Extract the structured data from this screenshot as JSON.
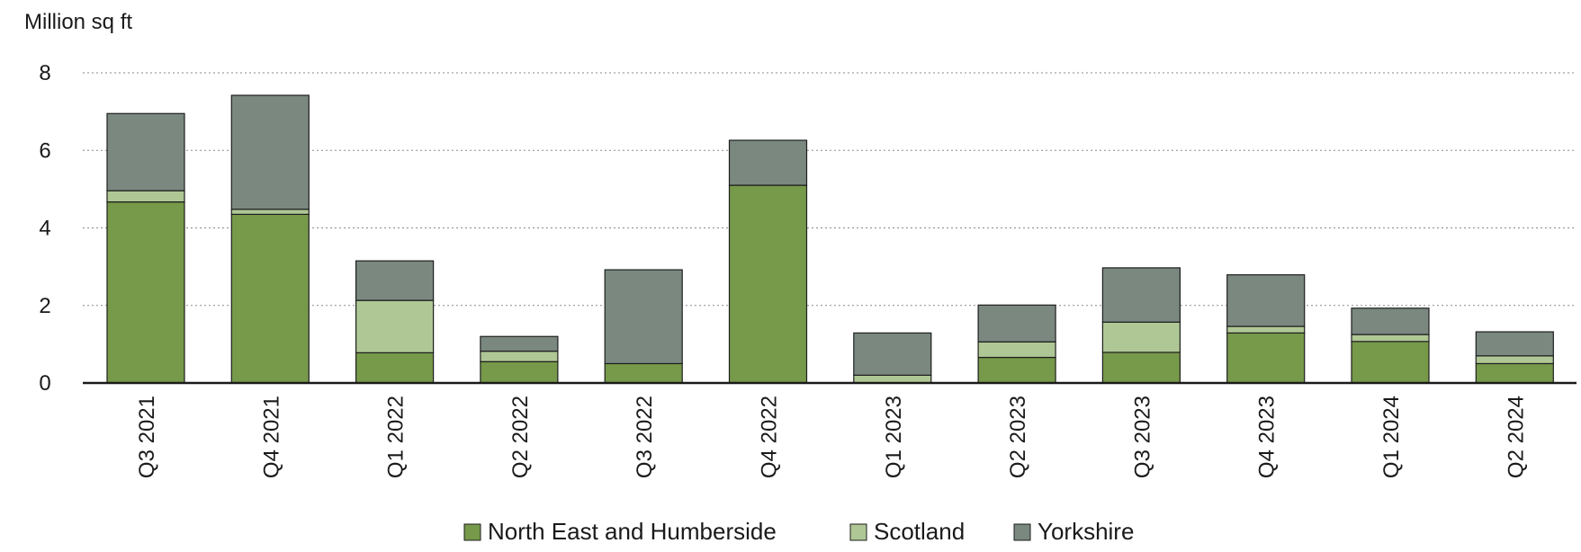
{
  "chart_data": {
    "type": "bar",
    "stacked": true,
    "title": "",
    "xlabel": "",
    "ylabel": "Million sq ft",
    "ylim": [
      0,
      8
    ],
    "yticks": [
      0,
      2,
      4,
      6,
      8
    ],
    "grid": "horizontal dotted",
    "legend_position": "bottom",
    "categories": [
      "Q3 2021",
      "Q4 2021",
      "Q1 2022",
      "Q2 2022",
      "Q3 2022",
      "Q4 2022",
      "Q1 2023",
      "Q2 2023",
      "Q3 2023",
      "Q4 2023",
      "Q1 2024",
      "Q2 2024"
    ],
    "series": [
      {
        "name": "North East and Humberside",
        "color": "#76994a",
        "values": [
          4.67,
          4.35,
          0.78,
          0.55,
          0.5,
          5.1,
          0.0,
          0.66,
          0.79,
          1.29,
          1.07,
          0.5
        ]
      },
      {
        "name": "Scotland",
        "color": "#afc795",
        "values": [
          0.29,
          0.13,
          1.35,
          0.27,
          0.0,
          0.0,
          0.2,
          0.4,
          0.78,
          0.17,
          0.18,
          0.2
        ]
      },
      {
        "name": "Yorkshire",
        "color": "#7a8880",
        "values": [
          1.99,
          2.94,
          1.02,
          0.38,
          2.42,
          1.16,
          1.09,
          0.95,
          1.4,
          1.33,
          0.68,
          0.62
        ]
      }
    ]
  }
}
